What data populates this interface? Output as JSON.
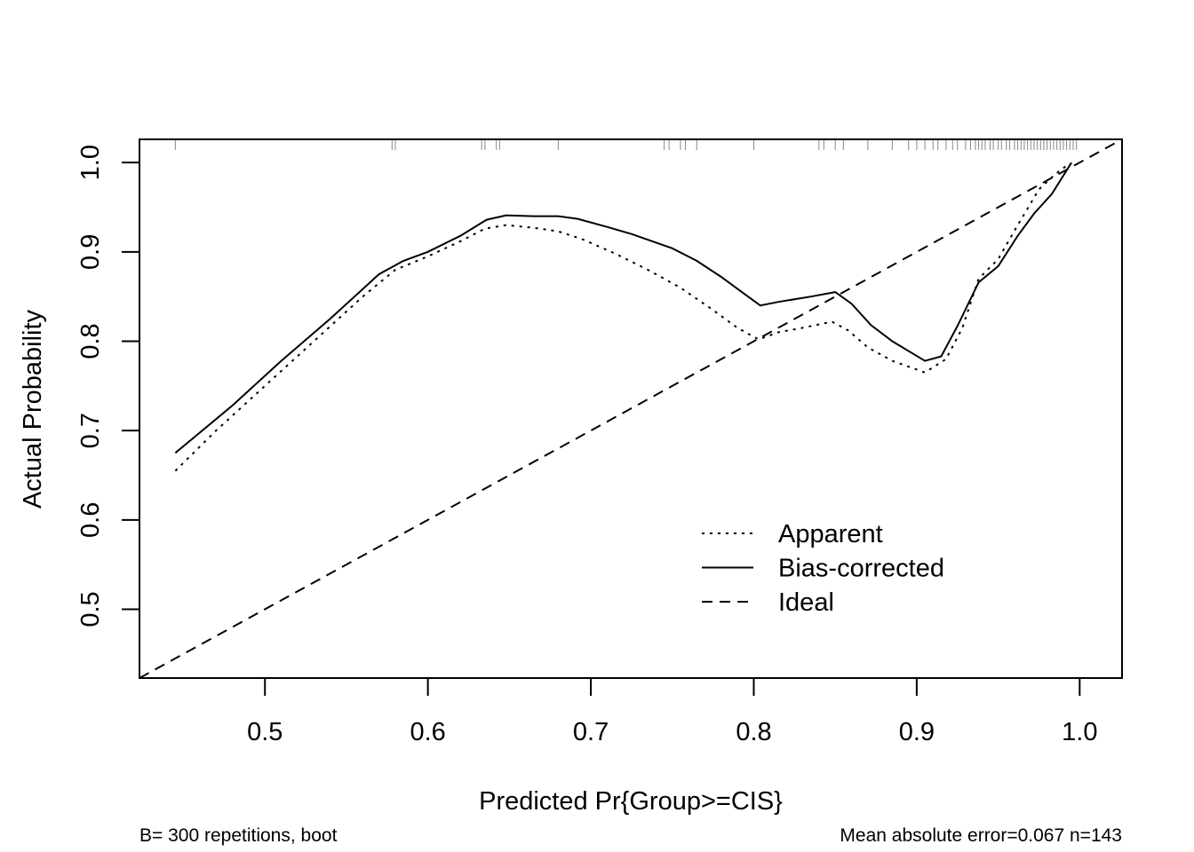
{
  "chart_data": {
    "type": "line",
    "xlabel": "Predicted Pr{Group>=CIS}",
    "ylabel": "Actual Probability",
    "xlim": [
      0.423,
      1.026
    ],
    "ylim": [
      0.423,
      1.026
    ],
    "x_ticks": [
      0.5,
      0.6,
      0.7,
      0.8,
      0.9,
      1.0
    ],
    "x_tick_labels": [
      "0.5",
      "0.6",
      "0.7",
      "0.8",
      "0.9",
      "1.0"
    ],
    "y_ticks": [
      0.5,
      0.6,
      0.7,
      0.8,
      0.9,
      1.0
    ],
    "y_tick_labels": [
      "0.5",
      "0.6",
      "0.7",
      "0.8",
      "0.9",
      "1.0"
    ],
    "legend_position": "bottom-right",
    "grid": false,
    "series": [
      {
        "name": "Apparent",
        "style": "dotted",
        "x": [
          0.445,
          0.47,
          0.5,
          0.53,
          0.56,
          0.58,
          0.6,
          0.62,
          0.635,
          0.648,
          0.665,
          0.68,
          0.695,
          0.715,
          0.735,
          0.755,
          0.775,
          0.79,
          0.803,
          0.815,
          0.83,
          0.848,
          0.858,
          0.87,
          0.885,
          0.905,
          0.918,
          0.928,
          0.938,
          0.95,
          0.962,
          0.975,
          0.985,
          0.993
        ],
        "y": [
          0.655,
          0.7,
          0.75,
          0.8,
          0.85,
          0.88,
          0.895,
          0.912,
          0.926,
          0.93,
          0.927,
          0.923,
          0.914,
          0.898,
          0.88,
          0.86,
          0.835,
          0.815,
          0.802,
          0.81,
          0.815,
          0.822,
          0.812,
          0.793,
          0.778,
          0.765,
          0.78,
          0.815,
          0.87,
          0.892,
          0.93,
          0.97,
          0.987,
          0.998
        ]
      },
      {
        "name": "Bias-corrected",
        "style": "solid",
        "x": [
          0.445,
          0.48,
          0.51,
          0.54,
          0.57,
          0.585,
          0.6,
          0.62,
          0.636,
          0.648,
          0.665,
          0.68,
          0.692,
          0.71,
          0.725,
          0.75,
          0.765,
          0.78,
          0.795,
          0.804,
          0.815,
          0.835,
          0.85,
          0.86,
          0.872,
          0.885,
          0.905,
          0.915,
          0.925,
          0.938,
          0.95,
          0.962,
          0.972,
          0.983,
          0.995
        ],
        "y": [
          0.675,
          0.728,
          0.778,
          0.825,
          0.875,
          0.89,
          0.9,
          0.918,
          0.936,
          0.941,
          0.94,
          0.94,
          0.937,
          0.928,
          0.92,
          0.904,
          0.89,
          0.872,
          0.852,
          0.84,
          0.844,
          0.85,
          0.855,
          0.842,
          0.818,
          0.8,
          0.778,
          0.783,
          0.817,
          0.866,
          0.884,
          0.918,
          0.943,
          0.965,
          1.0
        ]
      },
      {
        "name": "Ideal",
        "style": "dashed",
        "x": [
          0.423,
          1.026
        ],
        "y": [
          0.423,
          1.026
        ]
      }
    ],
    "rug_x": [
      0.445,
      0.578,
      0.58,
      0.633,
      0.635,
      0.642,
      0.644,
      0.68,
      0.745,
      0.748,
      0.755,
      0.758,
      0.765,
      0.8,
      0.84,
      0.843,
      0.85,
      0.855,
      0.87,
      0.885,
      0.895,
      0.9,
      0.905,
      0.91,
      0.913,
      0.918,
      0.922,
      0.925,
      0.93,
      0.933,
      0.936,
      0.938,
      0.94,
      0.942,
      0.945,
      0.947,
      0.95,
      0.952,
      0.955,
      0.957,
      0.96,
      0.962,
      0.964,
      0.966,
      0.968,
      0.97,
      0.972,
      0.974,
      0.976,
      0.978,
      0.98,
      0.982,
      0.984,
      0.986,
      0.988,
      0.99,
      0.992,
      0.994,
      0.996,
      0.998
    ]
  },
  "footnote_left": "B= 300 repetitions, boot",
  "footnote_right": "Mean absolute error=0.067 n=143"
}
